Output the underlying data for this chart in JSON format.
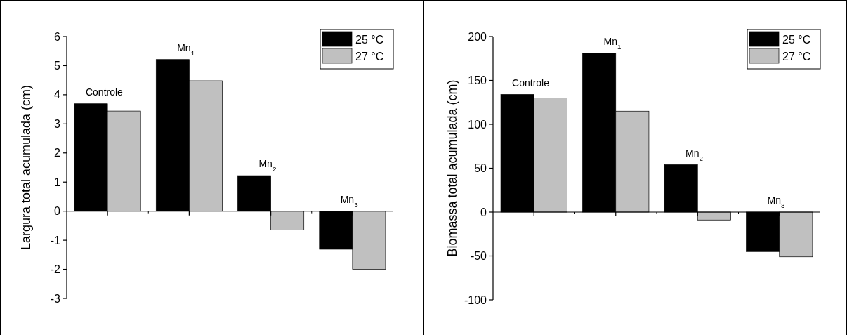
{
  "chart_data": [
    {
      "type": "bar",
      "ylabel": "Largura total acumulada (cm)",
      "categories": [
        "Controle",
        "Mn$_{1}$",
        "Mn$_{2}$",
        "Mn$_{3}$"
      ],
      "series": [
        {
          "name": "25 °C",
          "color": "#000000",
          "values": [
            3.69,
            5.21,
            1.22,
            -1.31
          ]
        },
        {
          "name": "27 °C",
          "color": "#c0c0c0",
          "values": [
            3.44,
            4.48,
            -0.65,
            -2.0
          ]
        }
      ],
      "ylim": [
        -3,
        6
      ],
      "yticks": [
        -3,
        -2,
        -1,
        0,
        1,
        2,
        3,
        4,
        5,
        6
      ],
      "legend": "top right"
    },
    {
      "type": "bar",
      "ylabel": "Biomassa total acumulada (cm)",
      "categories": [
        "Controle",
        "Mn$_{1}$",
        "Mn$_{2}$",
        "Mn$_{3}$"
      ],
      "series": [
        {
          "name": "25 °C",
          "color": "#000000",
          "values": [
            134,
            181,
            54,
            -45
          ]
        },
        {
          "name": "27 °C",
          "color": "#c0c0c0",
          "values": [
            130,
            115,
            -9,
            -51
          ]
        }
      ],
      "ylim": [
        -100,
        200
      ],
      "yticks": [
        -100,
        -50,
        0,
        50,
        100,
        150,
        200
      ],
      "legend": "top right"
    }
  ]
}
